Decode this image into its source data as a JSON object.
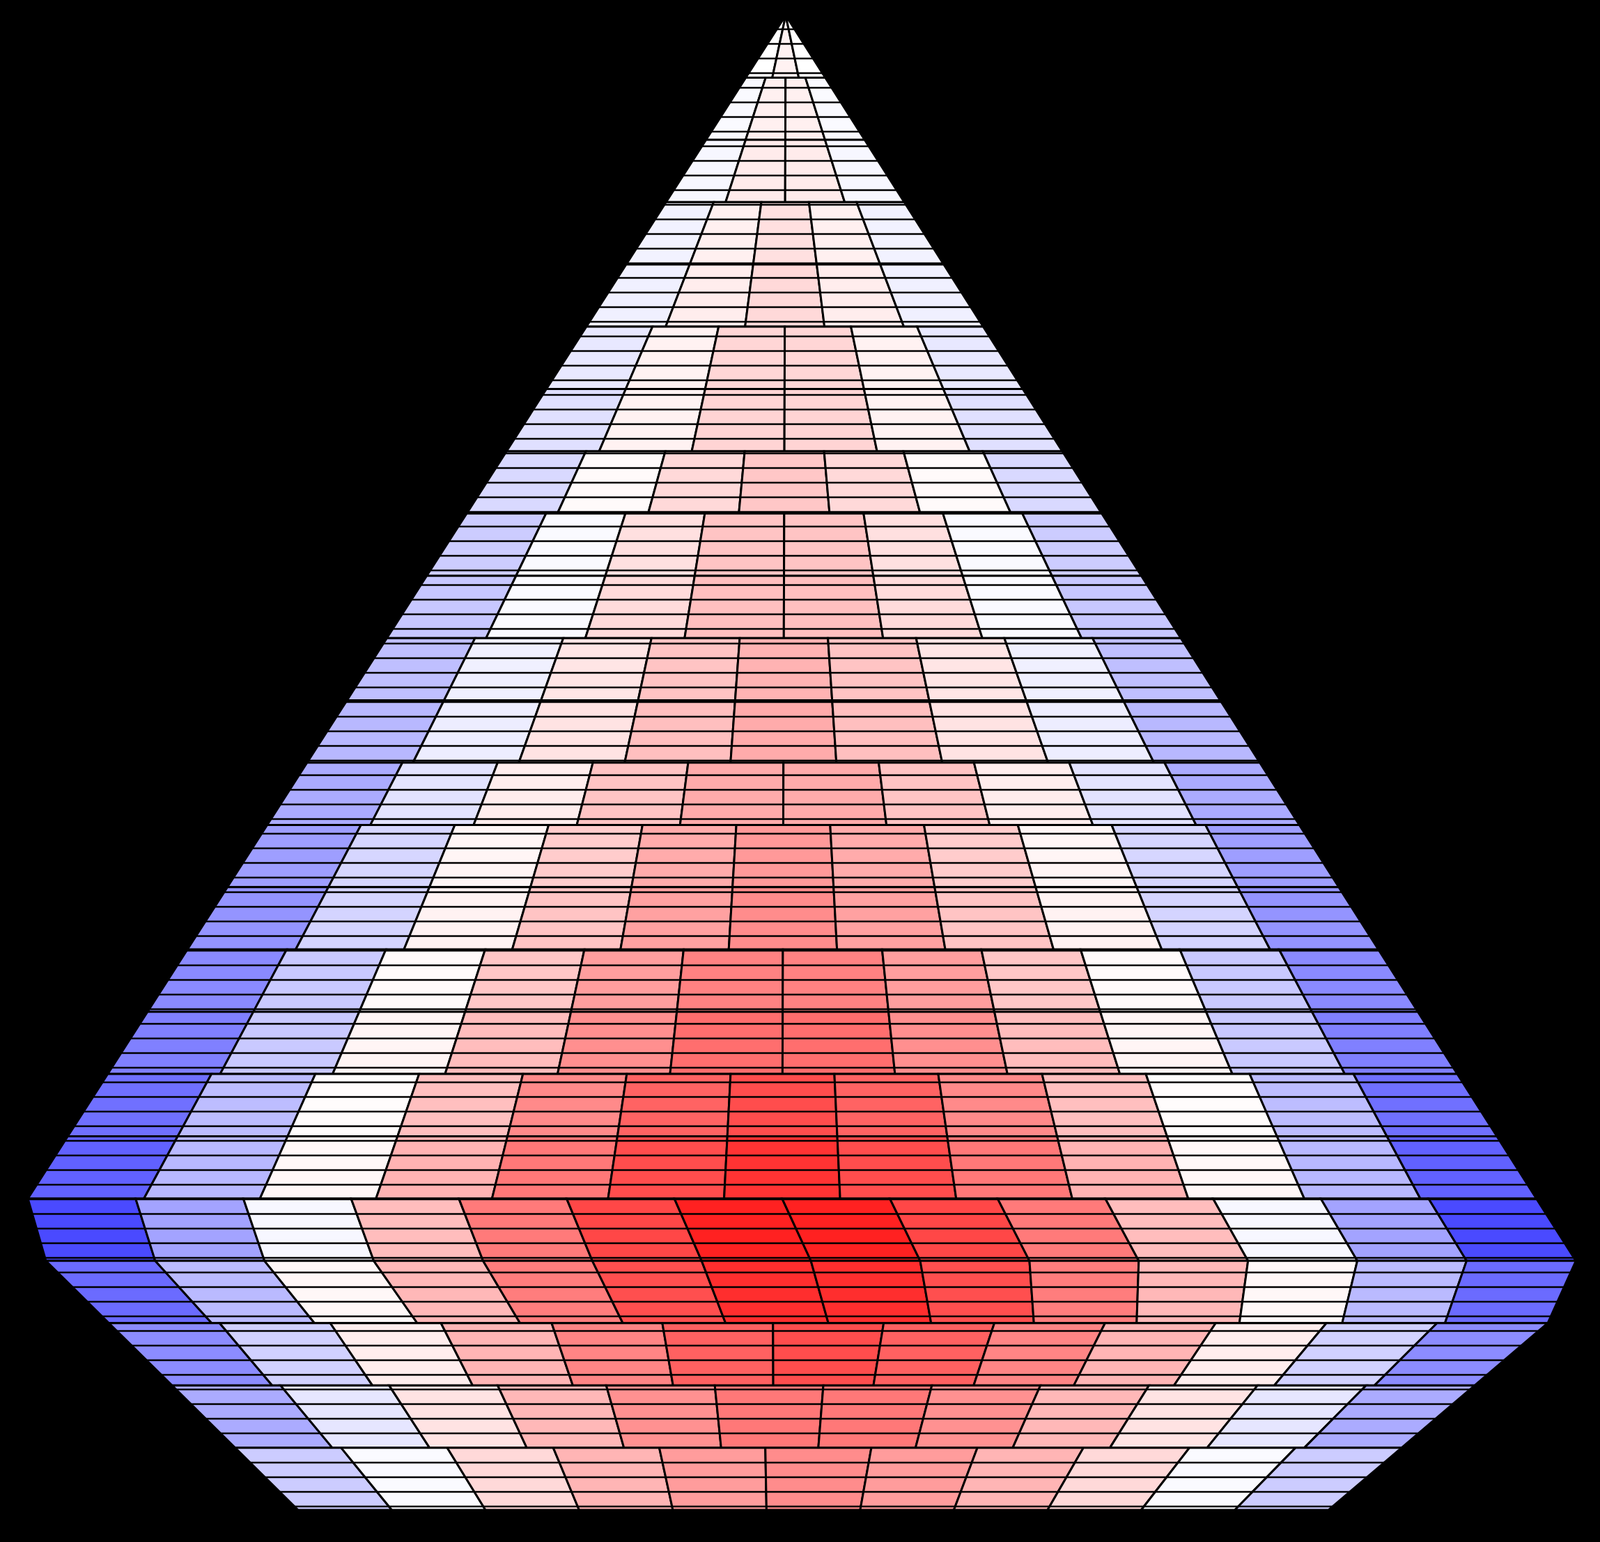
{
  "chart_data": {
    "type": "heatmap",
    "tick_labels": false,
    "zlim": [
      -1,
      1
    ],
    "colors": [
      "#0000ff",
      "#ffffff",
      "#ff0000"
    ],
    "cells": [
      [
        0,
        0.05,
        0
      ],
      [
        -0.02,
        0.06,
        0.06,
        -0.02
      ],
      [
        -0.03,
        0.08,
        0.08,
        -0.03
      ],
      [
        -0.05,
        0.06,
        0.12,
        0.06,
        -0.05
      ],
      [
        -0.06,
        0.07,
        0.15,
        0.07,
        -0.06
      ],
      [
        -0.09,
        0.05,
        0.16,
        0.16,
        0.05,
        -0.09
      ],
      [
        -0.12,
        0.05,
        0.17,
        0.17,
        0.05,
        -0.12
      ],
      [
        -0.15,
        0.02,
        0.15,
        0.22,
        0.15,
        0.02,
        -0.15
      ],
      [
        -0.2,
        -0.02,
        0.12,
        0.23,
        0.23,
        0.12,
        -0.02,
        -0.2
      ],
      [
        -0.22,
        -0.02,
        0.14,
        0.25,
        0.25,
        0.14,
        -0.02,
        -0.22
      ],
      [
        -0.25,
        -0.06,
        0.1,
        0.23,
        0.3,
        0.23,
        0.1,
        -0.06,
        -0.25
      ],
      [
        -0.28,
        -0.07,
        0.11,
        0.25,
        0.33,
        0.25,
        0.11,
        -0.07,
        -0.28
      ],
      [
        -0.33,
        -0.11,
        0.07,
        0.23,
        0.33,
        0.33,
        0.23,
        0.07,
        -0.11,
        -0.33
      ],
      [
        -0.38,
        -0.16,
        0.04,
        0.2,
        0.33,
        0.4,
        0.33,
        0.2,
        0.04,
        -0.16,
        -0.38
      ],
      [
        -0.42,
        -0.17,
        0.05,
        0.23,
        0.37,
        0.45,
        0.37,
        0.23,
        0.05,
        -0.17,
        -0.42
      ],
      [
        -0.46,
        -0.21,
        0.02,
        0.22,
        0.38,
        0.49,
        0.49,
        0.38,
        0.22,
        0.02,
        -0.21,
        -0.46
      ],
      [
        -0.5,
        -0.21,
        0.04,
        0.26,
        0.44,
        0.57,
        0.57,
        0.44,
        0.26,
        0.04,
        -0.21,
        -0.5
      ],
      [
        -0.56,
        -0.26,
        0.01,
        0.25,
        0.46,
        0.61,
        0.7,
        0.61,
        0.46,
        0.25,
        0.01,
        -0.26,
        -0.56
      ],
      [
        -0.62,
        -0.28,
        0.03,
        0.3,
        0.53,
        0.7,
        0.8,
        0.7,
        0.53,
        0.3,
        0.03,
        -0.28,
        -0.62
      ],
      [
        -0.71,
        -0.36,
        -0.03,
        0.26,
        0.52,
        0.72,
        0.87,
        0.87,
        0.72,
        0.52,
        0.26,
        -0.03,
        -0.36,
        -0.71
      ],
      [
        -0.58,
        -0.27,
        0.03,
        0.28,
        0.51,
        0.69,
        0.82,
        0.82,
        0.69,
        0.51,
        0.28,
        0.03,
        -0.27,
        -0.58
      ],
      [
        -0.45,
        -0.18,
        0.07,
        0.29,
        0.48,
        0.62,
        0.7,
        0.62,
        0.48,
        0.29,
        0.07,
        -0.18,
        -0.45
      ],
      [
        -0.33,
        -0.1,
        0.11,
        0.28,
        0.43,
        0.53,
        0.53,
        0.43,
        0.28,
        0.11,
        -0.1,
        -0.33
      ],
      [
        -0.2,
        -0.02,
        0.15,
        0.29,
        0.39,
        0.45,
        0.39,
        0.29,
        0.15,
        -0.02,
        -0.2
      ]
    ]
  }
}
